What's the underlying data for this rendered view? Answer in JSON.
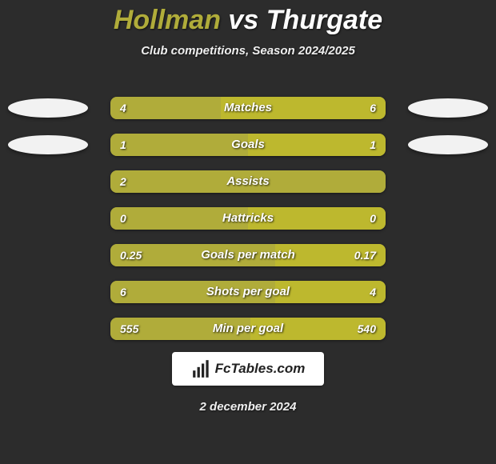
{
  "title": {
    "player1": "Hollman",
    "vs": "vs",
    "player2": "Thurgate"
  },
  "subtitle": "Club competitions, Season 2024/2025",
  "colors": {
    "player1": "#b0ac3a",
    "player2": "#bdb82e",
    "placeholder": "#f2f2f2",
    "background": "#2c2c2c"
  },
  "rows": [
    {
      "label": "Matches",
      "left": "4",
      "right": "6",
      "leftPct": 40,
      "rightPct": 60,
      "sideBadges": true
    },
    {
      "label": "Goals",
      "left": "1",
      "right": "1",
      "leftPct": 50,
      "rightPct": 50,
      "sideBadges": true
    },
    {
      "label": "Assists",
      "left": "2",
      "right": "",
      "leftPct": 100,
      "rightPct": 0,
      "sideBadges": false
    },
    {
      "label": "Hattricks",
      "left": "0",
      "right": "0",
      "leftPct": 50,
      "rightPct": 50,
      "sideBadges": false
    },
    {
      "label": "Goals per match",
      "left": "0.25",
      "right": "0.17",
      "leftPct": 60,
      "rightPct": 40,
      "sideBadges": false
    },
    {
      "label": "Shots per goal",
      "left": "6",
      "right": "4",
      "leftPct": 60,
      "rightPct": 40,
      "sideBadges": false
    },
    {
      "label": "Min per goal",
      "left": "555",
      "right": "540",
      "leftPct": 51,
      "rightPct": 49,
      "sideBadges": false
    }
  ],
  "footer": {
    "logoText": "FcTables.com",
    "date": "2 december 2024"
  }
}
